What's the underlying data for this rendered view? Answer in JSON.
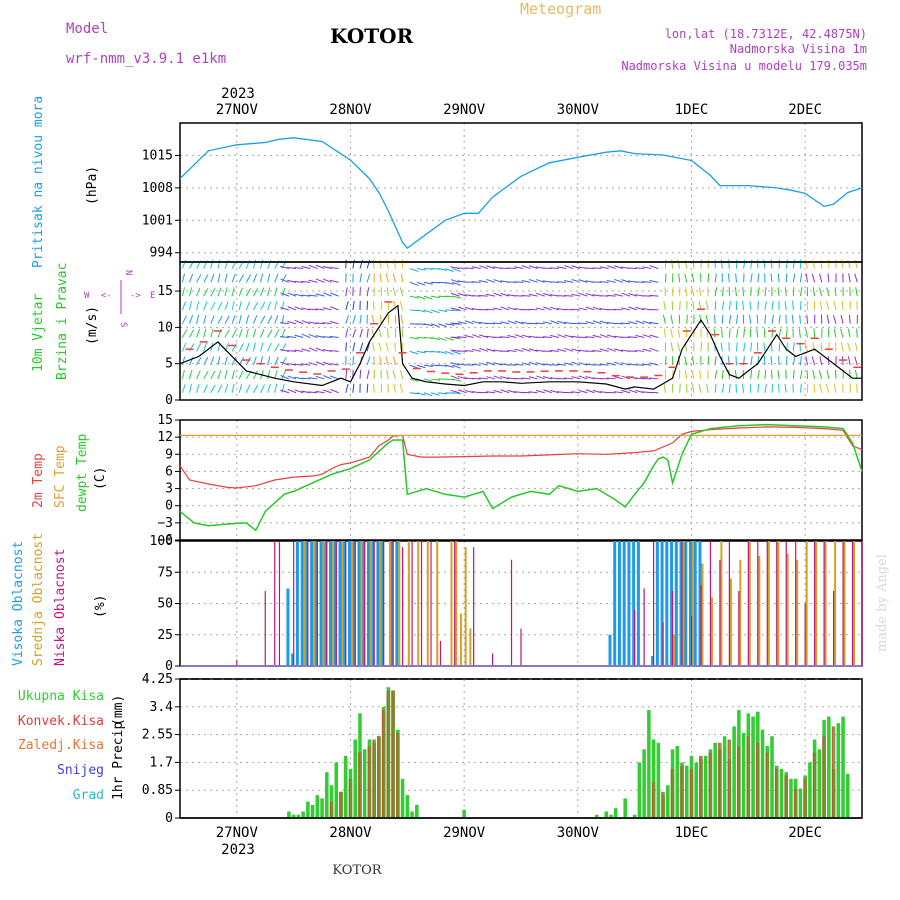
{
  "header": {
    "model_label": "Model",
    "model_name": "wrf-nmm_v3.9.1 e1km",
    "city": "KOTOR",
    "product": "Meteogram",
    "lonlat": "lon,lat (18.7312E, 42.4875N)",
    "altitude": "Nadmorska Visina 1m",
    "model_altitude": "Nadmorska Visina u modelu 179.035m",
    "footer_city": "KOTOR",
    "watermark": "made by Angel"
  },
  "colors": {
    "pressure": "#1aa0e6",
    "temp2m": "#e8413c",
    "sfc": "#e0a030",
    "dewpt": "#28c828",
    "high_cloud": "#1e9be6",
    "mid_cloud": "#d4a028",
    "low_cloud": "#c0147c",
    "precip_total": "#32cd32",
    "precip_conv": "#e03c3c",
    "freezing": "#f07030",
    "snow": "#4040e0",
    "hail": "#20c0c0",
    "header_purple": "#b040c0",
    "header_orange": "#e8b860",
    "grid": "#aaaaaa"
  },
  "time_axis": {
    "year": "2023",
    "days": [
      "27NOV",
      "28NOV",
      "29NOV",
      "30NOV",
      "1DEC",
      "2DEC"
    ],
    "day_positions_hours": [
      12,
      36,
      60,
      84,
      108,
      132
    ],
    "range_hours": [
      0,
      144
    ]
  },
  "labels": {
    "pressure": [
      "Pritisak na nivou mora",
      "(hPa)"
    ],
    "wind": [
      "10m Vjetar",
      "Brzina i Pravac",
      "(m/s)"
    ],
    "compass": [
      "N",
      "W",
      "E",
      "S",
      "<-",
      "->"
    ],
    "temp": [
      "2m Temp",
      "SFC Temp",
      "dewpt Temp",
      "(C)"
    ],
    "cloud": [
      "Visoka Oblacnost",
      "Srednja Oblacnost",
      "Niska Oblacnost",
      "(%)"
    ],
    "precip_axis": [
      "1hr Precip",
      "(mm)"
    ],
    "precip_legend": [
      "Ukupna Kisa",
      "Konvek.Kisa",
      "Zaledj.Kisa",
      "Snijeg",
      "Grad"
    ]
  },
  "chart_data": [
    {
      "type": "line",
      "panel": "pressure",
      "ylabel": "(hPa)",
      "ylim": [
        992,
        1022
      ],
      "yticks": [
        994,
        1001,
        1008,
        1015
      ],
      "grid": true,
      "series": [
        {
          "name": "Pritisak na nivou mora",
          "x": [
            0,
            6,
            12,
            18,
            21,
            24,
            30,
            33,
            36,
            40,
            42,
            44,
            47,
            48,
            52,
            56,
            60,
            63,
            66,
            72,
            78,
            84,
            90,
            93,
            96,
            102,
            108,
            112,
            114,
            120,
            126,
            129,
            132,
            136,
            138,
            141,
            144
          ],
          "y": [
            1010,
            1016,
            1017.3,
            1017.8,
            1018.5,
            1018.8,
            1018,
            1016,
            1014,
            1010,
            1007,
            1003,
            996.2,
            995,
            998,
            1001,
            1002.5,
            1002.5,
            1006,
            1010.5,
            1013.4,
            1014.6,
            1015.7,
            1016,
            1015.4,
            1015.1,
            1013.9,
            1010.7,
            1008.5,
            1008.5,
            1008,
            1007.5,
            1006.8,
            1004,
            1004.5,
            1007,
            1008
          ]
        }
      ]
    },
    {
      "type": "line",
      "panel": "wind",
      "ylabel": "(m/s)",
      "ylim": [
        0,
        19
      ],
      "yticks": [
        0,
        5,
        10,
        15
      ],
      "grid": true,
      "series": [
        {
          "name": "10m Vjetar",
          "x": [
            0,
            4,
            8,
            14,
            20,
            24,
            30,
            34,
            36,
            38,
            40,
            42,
            44,
            46,
            47,
            49,
            52,
            56,
            60,
            64,
            68,
            72,
            78,
            84,
            90,
            94,
            96,
            100,
            104,
            106,
            108,
            110,
            112,
            114,
            116,
            118,
            120,
            122,
            124,
            126,
            128,
            130,
            132,
            134,
            136,
            138,
            140,
            142,
            144
          ],
          "y": [
            5,
            6,
            8,
            4,
            3,
            2.5,
            2,
            3,
            2.5,
            5,
            8,
            10,
            12,
            13,
            5,
            3,
            2.5,
            2.2,
            2,
            2.5,
            2.5,
            2.3,
            2.5,
            2.5,
            2.2,
            1.5,
            1.8,
            1.5,
            3,
            7,
            9,
            11,
            9,
            6,
            3.5,
            3,
            4,
            5,
            7,
            9,
            7,
            6,
            6.5,
            7,
            6,
            5,
            4,
            3,
            3
          ]
        }
      ]
    },
    {
      "type": "line",
      "panel": "temperature",
      "ylabel": "(C)",
      "ylim": [
        -6,
        15
      ],
      "yticks": [
        -6,
        -3,
        0,
        3,
        6,
        9,
        12,
        15
      ],
      "grid": true,
      "series": [
        {
          "name": "2m Temp",
          "x": [
            0,
            2,
            6,
            10,
            12,
            16,
            20,
            24,
            28,
            30,
            32,
            34,
            36,
            40,
            42,
            44,
            45,
            47,
            48,
            51,
            54,
            60,
            66,
            72,
            78,
            84,
            90,
            96,
            100,
            104,
            106,
            108,
            112,
            118,
            124,
            130,
            136,
            140,
            142,
            144
          ],
          "y": [
            7,
            4.5,
            3.8,
            3.2,
            3.1,
            3.5,
            4.5,
            5,
            5.2,
            5.5,
            6.5,
            7.2,
            7.5,
            8.5,
            10.5,
            11.5,
            12.2,
            12.3,
            9,
            8.5,
            8.5,
            8.6,
            8.7,
            8.7,
            8.9,
            9.1,
            9,
            9.3,
            9.6,
            11,
            12.5,
            13,
            13.3,
            13.6,
            13.8,
            13.7,
            13.5,
            13.2,
            10.5,
            9.8
          ]
        },
        {
          "name": "SFC Temp",
          "x": [
            0,
            144
          ],
          "y": [
            12.3,
            12.3
          ]
        },
        {
          "name": "dewpt Temp",
          "x": [
            0,
            3,
            6,
            10,
            14,
            16,
            18,
            20,
            22,
            24,
            28,
            32,
            36,
            40,
            42,
            44,
            45,
            47,
            48,
            52,
            56,
            60,
            64,
            66,
            70,
            74,
            78,
            80,
            84,
            88,
            92,
            94,
            96,
            98,
            100,
            101,
            102,
            103,
            104,
            106,
            108,
            112,
            118,
            124,
            130,
            136,
            140,
            142,
            144
          ],
          "y": [
            -1,
            -3,
            -3.5,
            -3.2,
            -3,
            -4.3,
            -1,
            0.5,
            2,
            2.5,
            4,
            5.5,
            6.5,
            8,
            9.5,
            11,
            11.5,
            11.5,
            2,
            3,
            2,
            1.5,
            2.5,
            -0.5,
            1.5,
            2.5,
            2,
            3.5,
            2.5,
            3,
            1,
            -0.2,
            2,
            4,
            7,
            8.2,
            8.5,
            8,
            4,
            9,
            12.5,
            13.5,
            14,
            14.2,
            14,
            13.8,
            13.5,
            11,
            6
          ]
        }
      ]
    },
    {
      "type": "bar",
      "panel": "cloud_cover",
      "ylabel": "(%)",
      "ylim": [
        0,
        100
      ],
      "yticks": [
        0,
        25,
        50,
        75,
        100
      ],
      "grid": true,
      "series": [
        {
          "name": "Visoka Oblacnost",
          "x": [
            23,
            24,
            25,
            26,
            27,
            28,
            29,
            30,
            31,
            32,
            33,
            34,
            35,
            36,
            37,
            38,
            39,
            40,
            41,
            42,
            43,
            45,
            46,
            91,
            92,
            93,
            94,
            95,
            96,
            97,
            100,
            101,
            102,
            103,
            104,
            105,
            106,
            107,
            108,
            109,
            110
          ],
          "y": [
            62,
            10,
            100,
            100,
            100,
            100,
            100,
            100,
            100,
            100,
            100,
            100,
            100,
            100,
            100,
            100,
            100,
            100,
            100,
            100,
            100,
            100,
            100,
            25,
            100,
            100,
            100,
            100,
            100,
            100,
            8,
            100,
            100,
            100,
            100,
            100,
            100,
            100,
            100,
            100,
            100
          ]
        },
        {
          "name": "Srednja Oblacnost",
          "x": [
            26,
            28,
            30,
            32,
            34,
            36,
            38,
            40,
            42,
            44,
            46,
            48,
            50,
            52,
            54,
            57,
            58,
            59,
            60,
            61,
            104,
            106,
            108,
            110,
            112,
            114,
            116,
            118,
            120,
            122,
            124,
            126,
            128,
            130,
            132,
            134,
            136,
            138,
            140,
            142
          ],
          "y": [
            100,
            100,
            100,
            100,
            100,
            100,
            100,
            100,
            100,
            100,
            100,
            100,
            100,
            100,
            100,
            100,
            100,
            42,
            95,
            30,
            25,
            100,
            100,
            82,
            55,
            100,
            70,
            85,
            100,
            88,
            100,
            100,
            90,
            85,
            100,
            100,
            100,
            100,
            100,
            100
          ]
        },
        {
          "name": "Niska Oblacnost",
          "x": [
            12,
            18,
            20,
            21,
            24,
            27,
            29,
            31,
            33,
            35,
            37,
            39,
            41,
            43,
            45,
            47,
            49,
            51,
            53,
            55,
            58,
            62,
            66,
            70,
            72,
            96,
            98,
            100,
            102,
            104,
            106,
            108,
            110,
            112,
            114,
            116,
            118,
            120,
            122,
            124,
            126,
            128,
            130,
            132,
            134,
            136,
            138,
            140,
            142,
            144
          ],
          "y": [
            5,
            60,
            100,
            100,
            100,
            100,
            100,
            100,
            100,
            100,
            100,
            100,
            100,
            100,
            100,
            95,
            100,
            100,
            100,
            20,
            100,
            95,
            10,
            85,
            30,
            45,
            62,
            100,
            35,
            60,
            100,
            40,
            65,
            100,
            85,
            100,
            60,
            100,
            100,
            100,
            100,
            100,
            100,
            50,
            100,
            100,
            60,
            100,
            100,
            100
          ]
        }
      ]
    },
    {
      "type": "bar",
      "panel": "precipitation",
      "ylabel": "1hr Precip (mm)",
      "ylim": [
        0,
        4.25
      ],
      "yticks": [
        0,
        0.85,
        1.7,
        2.55,
        3.4,
        4.25
      ],
      "grid": true,
      "series": [
        {
          "name": "Ukupna Kisa",
          "x": [
            23,
            24,
            25,
            26,
            27,
            28,
            29,
            30,
            31,
            32,
            33,
            34,
            35,
            36,
            37,
            38,
            39,
            40,
            41,
            42,
            43,
            44,
            45,
            46,
            47,
            48,
            49,
            50,
            60,
            88,
            90,
            91,
            92,
            94,
            96,
            97,
            98,
            99,
            100,
            101,
            102,
            103,
            104,
            105,
            106,
            107,
            108,
            109,
            110,
            111,
            112,
            113,
            114,
            115,
            116,
            117,
            118,
            119,
            120,
            121,
            122,
            123,
            124,
            125,
            126,
            127,
            128,
            129,
            130,
            131,
            132,
            133,
            134,
            135,
            136,
            137,
            138,
            139,
            140,
            141
          ],
          "y": [
            0.2,
            0.1,
            0.1,
            0.2,
            0.5,
            0.4,
            0.7,
            0.6,
            1.4,
            1,
            1.7,
            0.8,
            1.9,
            1.5,
            2.4,
            3.2,
            2.1,
            2.4,
            2.3,
            2.5,
            3.4,
            4,
            3.9,
            2.7,
            1.2,
            0.7,
            0.2,
            0.4,
            0.25,
            0.1,
            0.2,
            0.1,
            0.3,
            0.6,
            0.1,
            1.7,
            2.1,
            3.3,
            2.4,
            2.3,
            0.7,
            1,
            2.1,
            2.2,
            1.7,
            1.6,
            1.9,
            1.7,
            1.8,
            1.9,
            2.1,
            2.3,
            2.1,
            2.5,
            1.8,
            2.8,
            3.3,
            2.6,
            3.2,
            3.1,
            3.25,
            2.7,
            2.2,
            2.5,
            1.6,
            1.5,
            1.4,
            1.2,
            1.2,
            0.9,
            1.3,
            1.7,
            2.4,
            2.1,
            3,
            3.1,
            1.5,
            2.9,
            3.1,
            1.35
          ]
        },
        {
          "name": "Konvek.Kisa",
          "x": [
            32,
            34,
            36,
            38,
            40,
            41,
            42,
            43,
            44,
            45,
            46,
            100,
            102,
            104,
            106,
            108,
            110,
            112,
            114,
            116,
            118,
            120,
            122,
            124,
            126,
            128,
            130,
            132,
            134,
            136,
            138
          ],
          "y": [
            0.5,
            0.8,
            1.2,
            2,
            2.2,
            2.4,
            2.5,
            3.3,
            3.9,
            3.9,
            2.6,
            1.1,
            0.8,
            1.5,
            1.6,
            1.5,
            1.9,
            2,
            2.3,
            2.4,
            2.2,
            2.5,
            2.3,
            2,
            1.5,
            1.3,
            0.9,
            1.2,
            2,
            2.5,
            2.8
          ]
        },
        {
          "name": "Zaledj.Kisa",
          "x": [],
          "y": []
        },
        {
          "name": "Snijeg",
          "x": [],
          "y": []
        },
        {
          "name": "Grad",
          "x": [],
          "y": []
        }
      ]
    }
  ]
}
